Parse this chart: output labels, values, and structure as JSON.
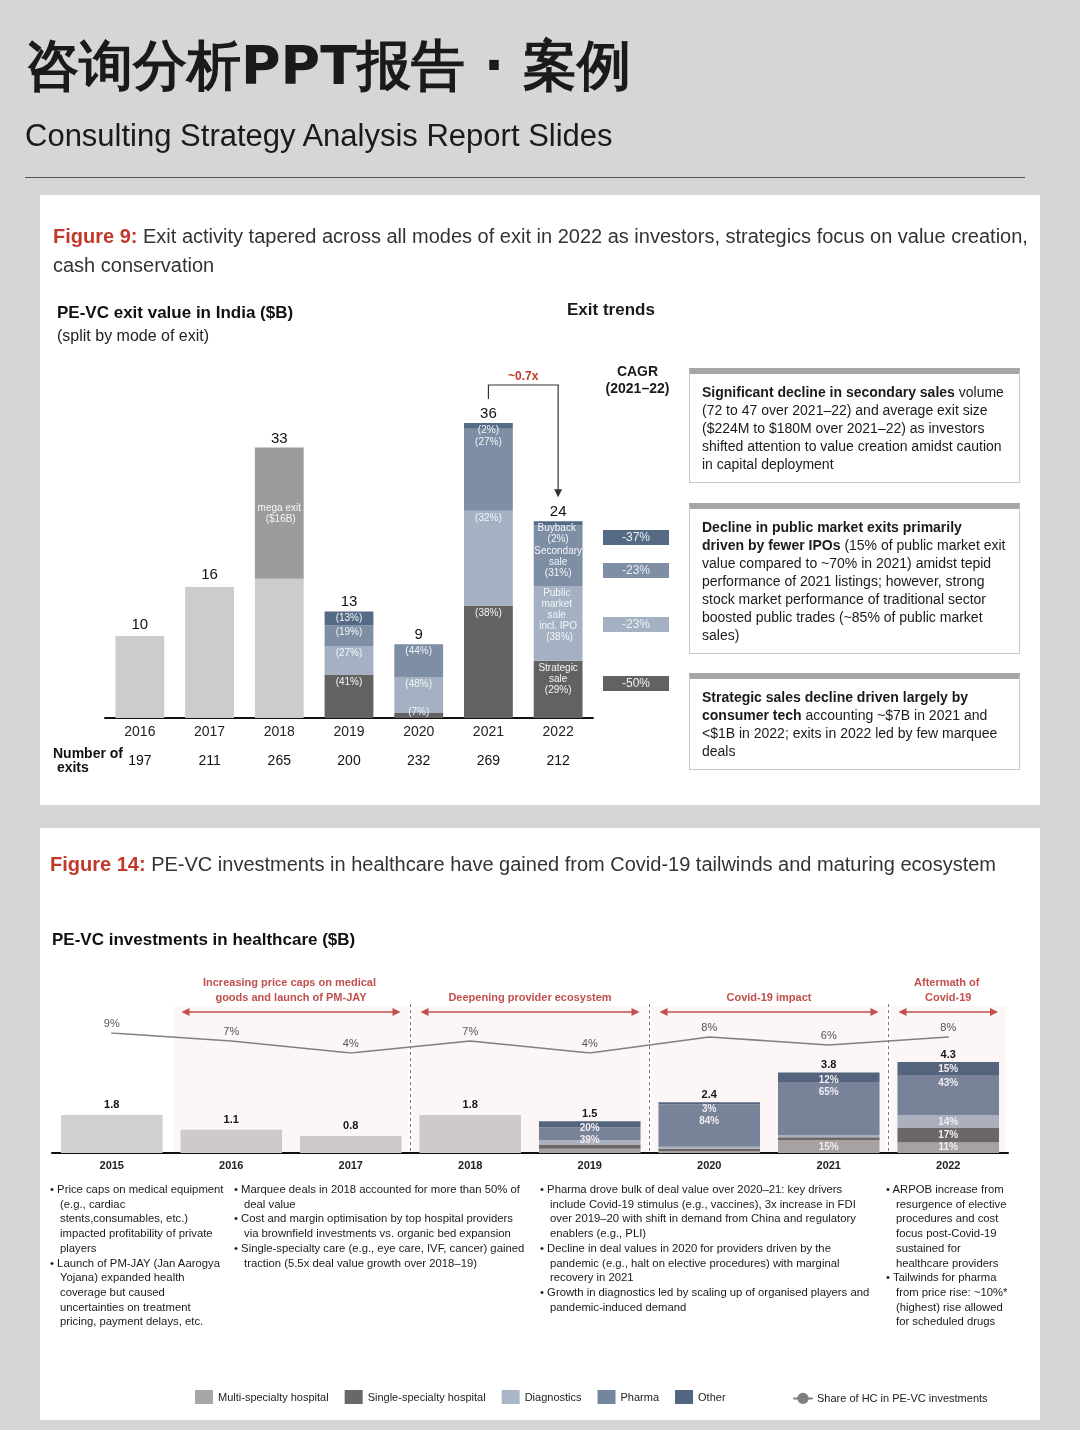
{
  "chart_data": [
    {
      "type": "other",
      "title": "咨询分析PPT报告 · 案例",
      "subtitle": "Consulting Strategy Analysis Report Slides"
    },
    {
      "type": "other",
      "title": "Figure 9: Exit activity tapered across all modes of exit in 2022 as investors, strategics focus on value creation, cash conservation"
    },
    {
      "type": "bar",
      "title": "PE-VC exit value in India ($B)",
      "subtitle": "(split by mode of exit)",
      "categories": [
        "2016",
        "2017",
        "2018",
        "2019",
        "2020",
        "2021",
        "2022"
      ],
      "stacked": true,
      "tick_labels": "x",
      "series": [
        {
          "color": "#cccccc",
          "values": [
            10,
            16,
            17,
            null,
            null,
            null,
            null
          ],
          "value_labels": [
            "10",
            "16",
            null,
            null,
            null,
            null,
            null
          ]
        },
        {
          "color": "#9c9c9c",
          "values": [
            null,
            null,
            16,
            null,
            null,
            null,
            null
          ],
          "value_labels": [
            null,
            null,
            "mega exit ($16B)",
            null,
            null,
            null,
            null
          ]
        },
        {
          "color": "#626262",
          "values": [
            null,
            null,
            null,
            5.3,
            0.6,
            13.7,
            7.0
          ]
        },
        {
          "color": "#a3b1c2",
          "values": [
            null,
            null,
            null,
            3.5,
            4.4,
            11.6,
            9.1
          ]
        },
        {
          "color": "#7d8ea5",
          "values": [
            null,
            null,
            null,
            2.5,
            4.0,
            10.0,
            7.4
          ]
        },
        {
          "color": "#556a85",
          "values": [
            null,
            null,
            null,
            1.7,
            null,
            0.7,
            0.5
          ]
        }
      ],
      "totals": [
        null,
        null,
        "33",
        "13",
        "9",
        "36",
        "24"
      ],
      "annotations": [
        "~0.7x",
        "Number of exits",
        "197",
        "211",
        "265",
        "200",
        "232",
        "269",
        "212",
        {
          "text": "(41%)",
          "x": "2019",
          "y": 5.3
        },
        {
          "text": "(27%)",
          "x": "2019",
          "y": 8.8
        },
        {
          "text": "(19%)",
          "x": "2019",
          "y": 11.3
        },
        {
          "text": "(13%)",
          "x": "2019",
          "y": 13.0
        },
        {
          "text": "(7%)",
          "x": "2020",
          "y": 0.6
        },
        {
          "text": "(48%)",
          "x": "2020",
          "y": 5.0
        },
        {
          "text": "(44%)",
          "x": "2020",
          "y": 9.0
        },
        {
          "text": "(38%)",
          "x": "2021",
          "y": 13.7
        },
        {
          "text": "(32%)",
          "x": "2021",
          "y": 25.3
        },
        {
          "text": "(27%)",
          "x": "2021",
          "y": 35.3
        },
        {
          "text": "(2%)",
          "x": "2021",
          "y": 36.0
        },
        {
          "text": "Strategic sale (29%)",
          "x": "2022",
          "y": 7.0
        },
        {
          "text": "Public market sale incl. IPO (38%)",
          "x": "2022",
          "y": 16.1
        },
        {
          "text": "Secondary sale (31%)",
          "x": "2022",
          "y": 23.5
        },
        {
          "text": "Buyback (2%)",
          "x": "2022",
          "y": 24.0
        }
      ]
    },
    {
      "type": "other",
      "title": "CAGR (2021–22)",
      "annotations": [
        "-37%",
        "-23%",
        "-23%",
        "-50%"
      ],
      "colors": [
        "#556a85",
        "#7d8ea5",
        "#a3b1c2",
        "#626262"
      ]
    },
    {
      "type": "other",
      "title": "Exit trends",
      "annotations": [
        "Significant decline in secondary sales",
        "volume (72 to 47 over 2021–22) and average exit size ($224M to $180M over 2021–22) as investors shifted attention to value creation amidst caution in capital deployment",
        "Decline in public market exits primarily driven by fewer IPOs",
        "(15% of public market exit value compared to ~70% in 2021) amidst tepid performance of 2021 listings; however, strong stock market performance of traditional sector boosted public trades (~85% of public market sales)",
        "Strategic sales decline driven largely by consumer tech",
        "accounting ~$7B in 2021 and <$1B in 2022; exits in 2022 led by few marquee deals"
      ]
    },
    {
      "type": "other",
      "title": "Figure 14: PE-VC investments in healthcare have gained from Covid-19 tailwinds and maturing ecosystem",
      "subtitle": "PE-VC investments in healthcare ($B)"
    },
    {
      "type": "bar",
      "categories": [
        "2015",
        "2016",
        "2017",
        "2018",
        "2019",
        "2020",
        "2021",
        "2022"
      ],
      "stacked": true,
      "tick_labels": "x",
      "legend": "bottom",
      "series": [
        {
          "color": "#d0d0d0",
          "values": [
            1.8,
            1.1,
            0.8,
            1.8,
            null,
            null,
            null,
            null
          ],
          "value_labels": [
            "1.8",
            "1.1",
            "0.8",
            "1.8",
            null,
            null,
            null,
            null
          ]
        },
        {
          "name": "Multi-specialty hospital",
          "color": "#a6a6a6",
          "values": [
            null,
            null,
            null,
            null,
            0.2,
            0.1,
            0.6,
            0.5
          ]
        },
        {
          "name": "Single-specialty hospital",
          "color": "#686868",
          "values": [
            null,
            null,
            null,
            null,
            0.2,
            0.1,
            0.15,
            0.7
          ]
        },
        {
          "name": "Diagnostics",
          "color": "#a9b6c5",
          "values": [
            null,
            null,
            null,
            null,
            0.2,
            0.1,
            0.1,
            0.6
          ]
        },
        {
          "name": "Pharma",
          "color": "#74869d",
          "values": [
            null,
            null,
            null,
            null,
            0.6,
            2.0,
            2.5,
            1.85
          ]
        },
        {
          "name": "Other",
          "color": "#506680",
          "values": [
            null,
            null,
            null,
            null,
            0.3,
            0.1,
            0.45,
            0.65
          ]
        }
      ],
      "totals": [
        null,
        null,
        null,
        null,
        "1.5",
        "2.4",
        "3.8",
        "4.3"
      ],
      "annotations": [
        {
          "text": "39%",
          "x": "2019",
          "y": 1.2
        },
        {
          "text": "20%",
          "x": "2019",
          "y": 1.5
        },
        {
          "text": "84%",
          "x": "2020",
          "y": 2.3
        },
        {
          "text": "3%",
          "x": "2020",
          "y": 2.4
        },
        {
          "text": "15%",
          "x": "2021",
          "y": 0.6
        },
        {
          "text": "65%",
          "x": "2021",
          "y": 3.35
        },
        {
          "text": "12%",
          "x": "2021",
          "y": 3.8
        },
        {
          "text": "11%",
          "x": "2022",
          "y": 0.5
        },
        {
          "text": "17%",
          "x": "2022",
          "y": 1.2
        },
        {
          "text": "14%",
          "x": "2022",
          "y": 1.8
        },
        {
          "text": "43%",
          "x": "2022",
          "y": 3.65
        },
        {
          "text": "15%",
          "x": "2022",
          "y": 4.3
        }
      ],
      "bands": [
        {
          "axis": "x",
          "from": "2016",
          "to": "2017",
          "label": "Increasing price caps on medical goods and launch of PM-JAY",
          "color": "#c0504d"
        },
        {
          "axis": "x",
          "from": "2018",
          "to": "2019",
          "label": "Deepening provider ecosystem",
          "color": "#c0504d"
        },
        {
          "axis": "x",
          "from": "2020",
          "to": "2021",
          "label": "Covid-19 impact",
          "color": "#c0504d"
        },
        {
          "axis": "x",
          "from": "2022",
          "to": "2022",
          "label": "Aftermath of Covid-19",
          "color": "#c0504d"
        }
      ]
    },
    {
      "type": "line",
      "categories": [
        "2015",
        "2016",
        "2017",
        "2018",
        "2019",
        "2020",
        "2021",
        "2022"
      ],
      "tick_labels": false,
      "legend": "bottom",
      "marker": "none",
      "series": [
        {
          "name": "Share of HC in PE-VC investments",
          "color": "#808080",
          "values": [
            9,
            7,
            4,
            7,
            4,
            8,
            6,
            8
          ],
          "value_labels": [
            "9%",
            "7%",
            "4%",
            "7%",
            "4%",
            "8%",
            "6%",
            "8%"
          ]
        }
      ]
    },
    {
      "type": "other",
      "annotations": [
        "• Price caps on medical equipment (e.g., cardiac stents,consumables, etc.) impacted profitability of private players",
        "• Launch of PM-JAY (Jan Aarogya Yojana) expanded health coverage but caused uncertainties on treatment pricing, payment delays, etc."
      ]
    },
    {
      "type": "other",
      "annotations": [
        "• Marquee deals in 2018 accounted for more than 50% of deal value",
        "• Cost and margin optimisation by top hospital providers via brownfield investments vs. organic bed expansion",
        "• Single-specialty care (e.g., eye care, IVF, cancer) gained traction (5.5x deal value growth over 2018–19)"
      ]
    },
    {
      "type": "other",
      "annotations": [
        "• Pharma drove bulk of deal value over 2020–21: key drivers include Covid-19 stimulus (e.g., vaccines), 3x increase in FDI over 2019–20 with shift in demand from China and regulatory enablers (e.g., PLI)",
        "• Decline in deal values in 2020 for providers driven by the pandemic (e.g., halt on elective procedures) with marginal recovery in 2021",
        "• Growth in diagnostics led by scaling up of organised players and pandemic-induced demand"
      ]
    },
    {
      "type": "other",
      "annotations": [
        "• ARPOB increase from resurgence of elective procedures and cost focus post-Covid-19 sustained for healthcare providers",
        "• Tailwinds for pharma from price rise: ~10%* (highest) rise allowed for scheduled drugs"
      ]
    }
  ]
}
